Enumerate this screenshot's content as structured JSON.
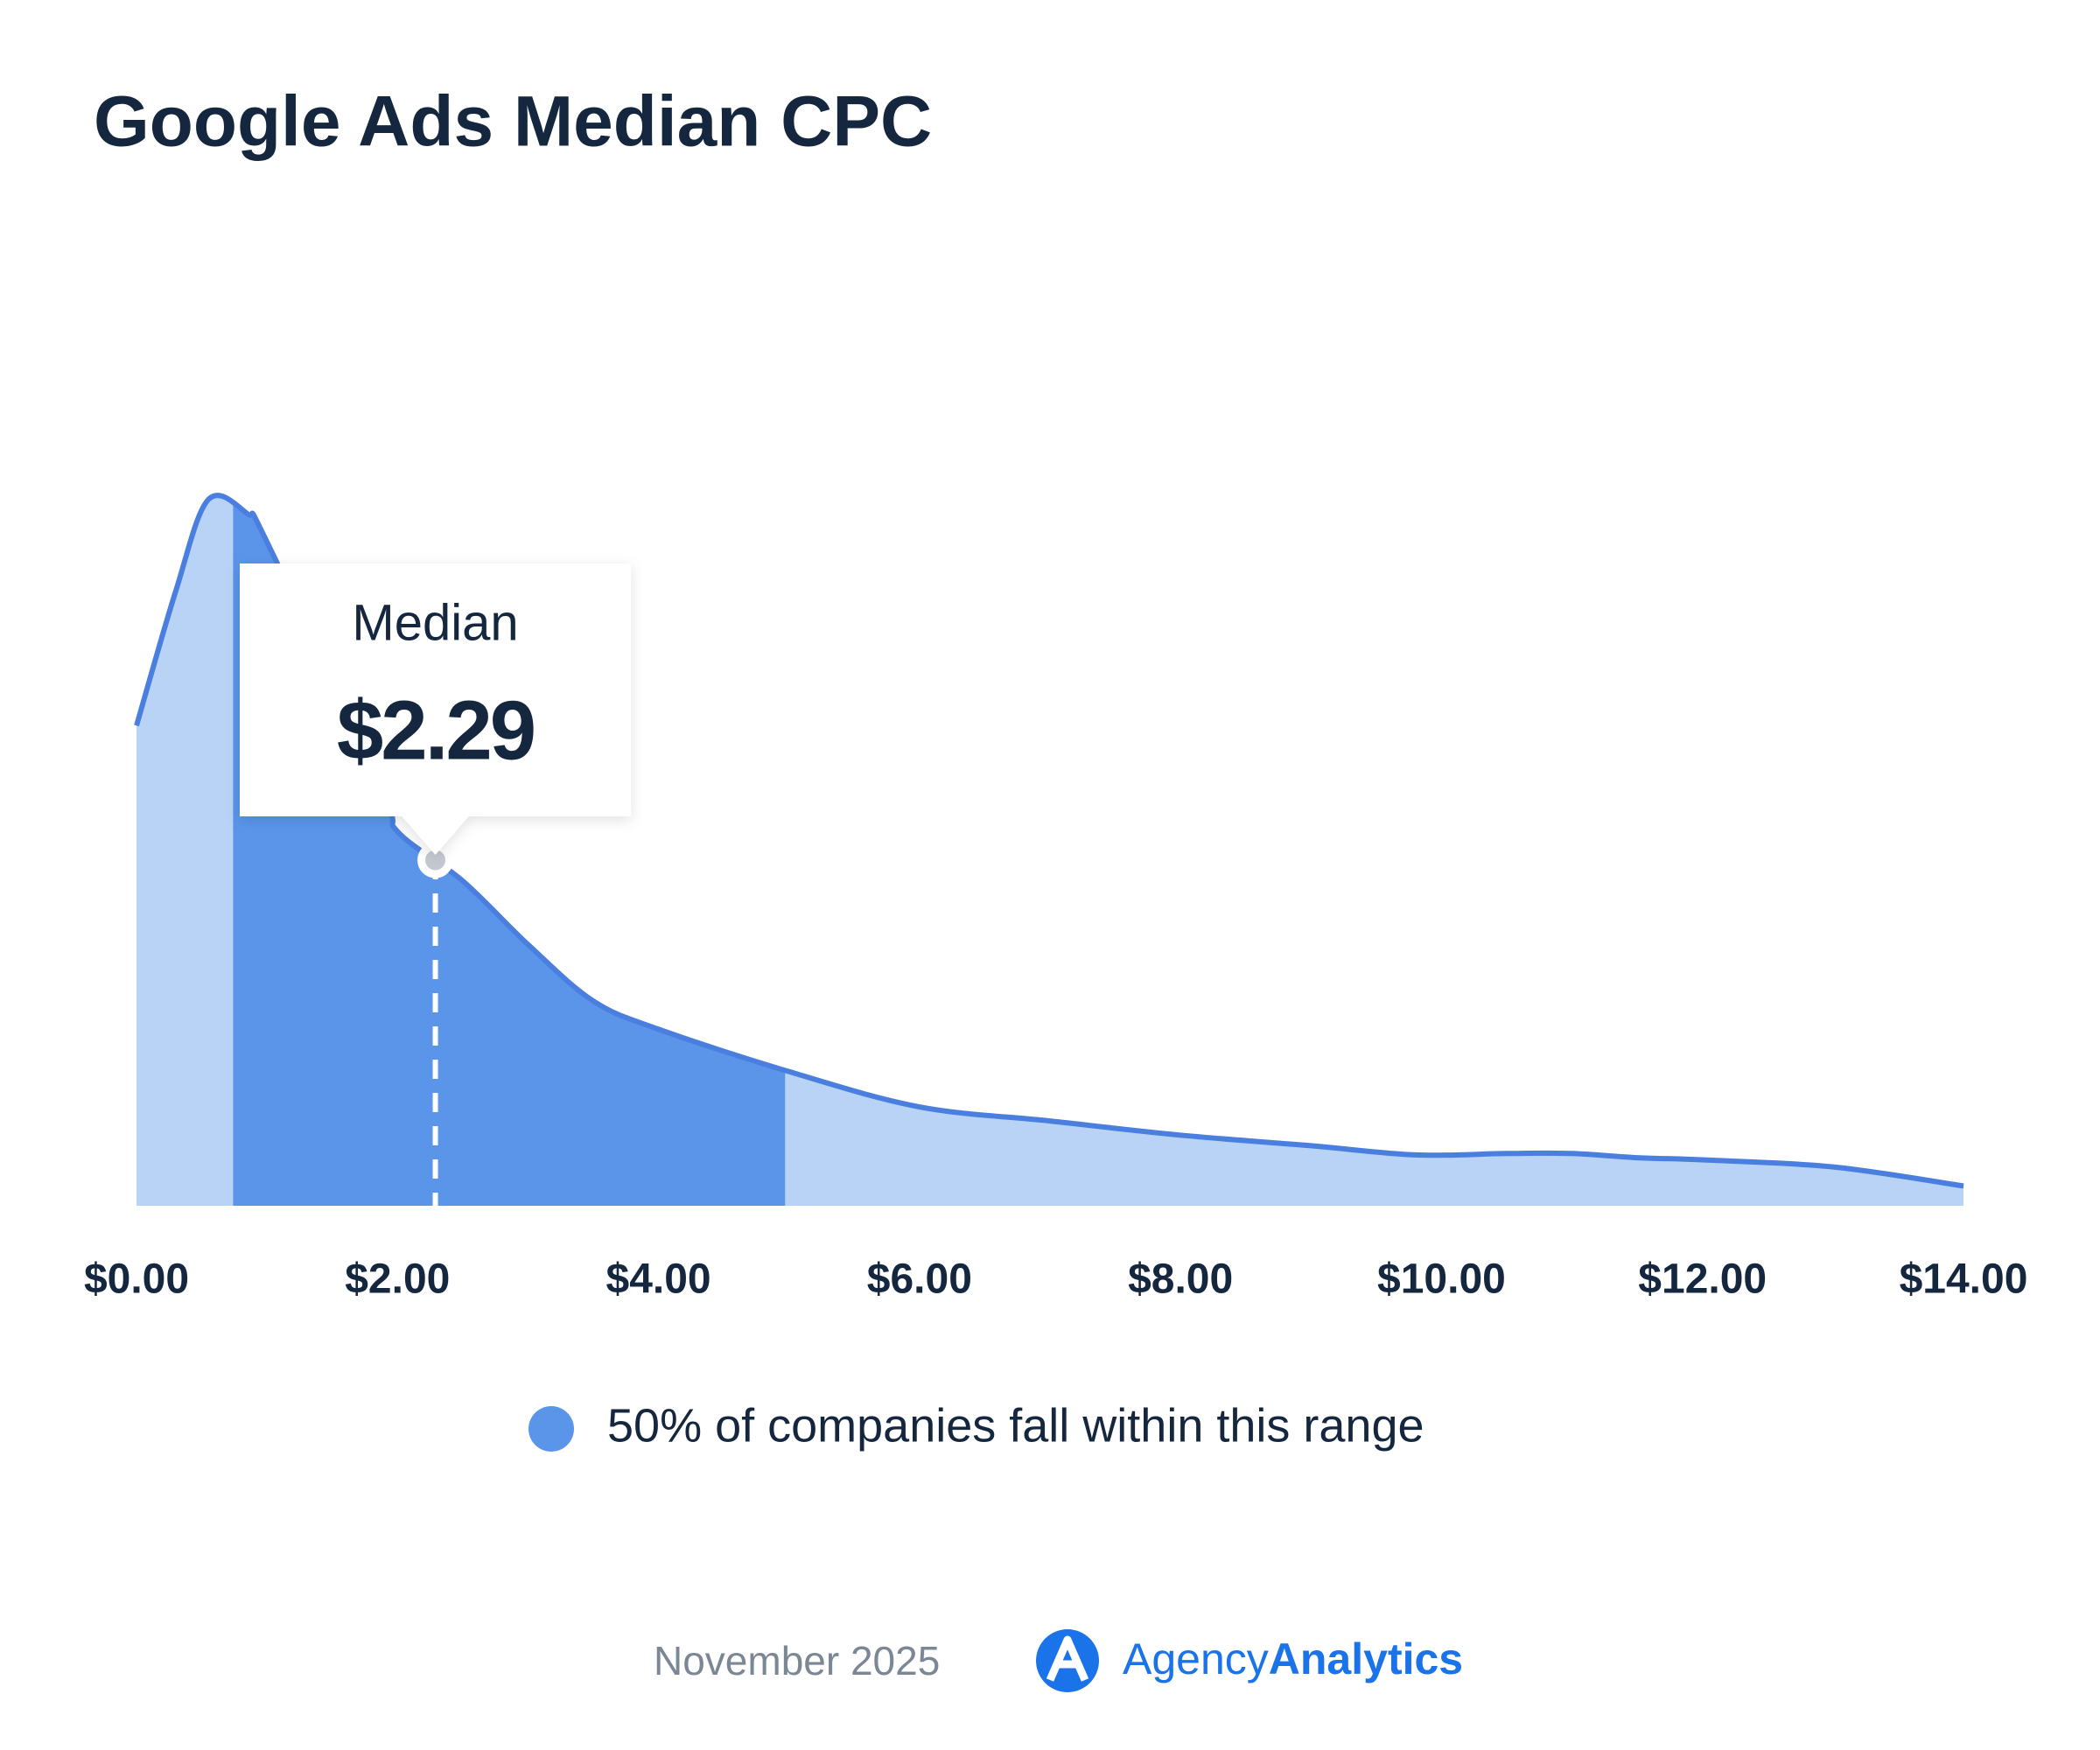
{
  "chart_data": {
    "type": "area",
    "title": "Google Ads Median CPC",
    "x": [
      0,
      0.3,
      0.55,
      0.85,
      1.0,
      1.88,
      2.0,
      2.5,
      3.0,
      3.5,
      4.0,
      5.0,
      6.0,
      7.0,
      8.0,
      9.0,
      9.8,
      10.5,
      11.0,
      11.5,
      12.0,
      13.0,
      14.0
    ],
    "values": [
      68,
      87,
      100,
      98,
      94,
      59,
      53,
      46,
      37,
      29,
      25,
      19,
      14,
      12,
      10,
      8.5,
      7.2,
      7.4,
      7.4,
      6.8,
      6.5,
      5.5,
      2.8
    ],
    "color": "#b9d3f6",
    "line_color": "#4a7fe0",
    "xlim": [
      0,
      14
    ],
    "ylim": [
      0,
      100
    ],
    "xticks": [
      {
        "value": 0,
        "label": "$0.00"
      },
      {
        "value": 2,
        "label": "$2.00"
      },
      {
        "value": 4,
        "label": "$4.00"
      },
      {
        "value": 6,
        "label": "$6.00"
      },
      {
        "value": 8,
        "label": "$8.00"
      },
      {
        "value": 10,
        "label": "$10.00"
      },
      {
        "value": 12,
        "label": "$12.00"
      },
      {
        "value": 14,
        "label": "$14.00"
      }
    ],
    "median": {
      "label": "Median",
      "value": 2.29,
      "value_label": "$2.29"
    },
    "range": {
      "values": [
        0.74,
        4.97
      ],
      "color": "#5a95ea",
      "legend": "50% of companies fall within this range"
    }
  },
  "footer": {
    "date": "November 2025",
    "brand": [
      "Agency",
      "Analytics"
    ]
  }
}
